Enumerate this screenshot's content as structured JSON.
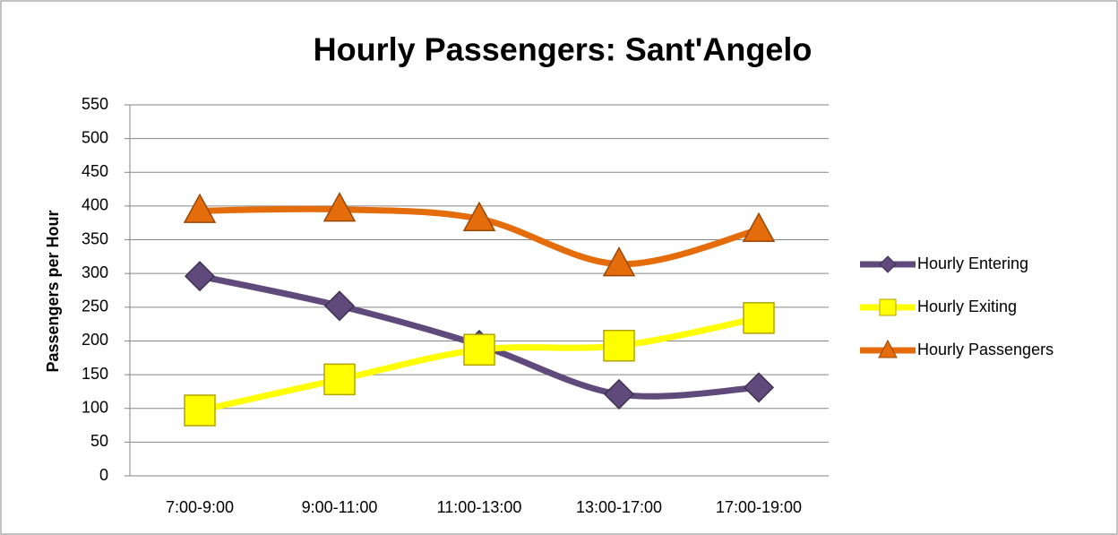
{
  "chart_data": {
    "type": "line",
    "title": "Hourly Passengers: Sant'Angelo",
    "y_label": "Passengers per Hour",
    "categories": [
      "7:00-9:00",
      "9:00-11:00",
      "11:00-13:00",
      "13:00-17:00",
      "17:00-19:00"
    ],
    "series": [
      {
        "name": "Hourly Entering",
        "color": "#604a7b",
        "marker": "diamond",
        "values": [
          296,
          252,
          194,
          121,
          131
        ]
      },
      {
        "name": "Hourly Exiting",
        "color": "#ffff00",
        "marker": "square",
        "values": [
          97,
          143,
          187,
          193,
          234
        ]
      },
      {
        "name": "Hourly Passengers",
        "color": "#e46c0a",
        "marker": "triangle",
        "values": [
          393,
          395,
          381,
          314,
          365
        ]
      }
    ],
    "ylim": [
      0,
      550
    ],
    "yticks": [
      0,
      50,
      100,
      150,
      200,
      250,
      300,
      350,
      400,
      450,
      500,
      550
    ],
    "grid": true,
    "smooth": true,
    "legend": "right"
  }
}
